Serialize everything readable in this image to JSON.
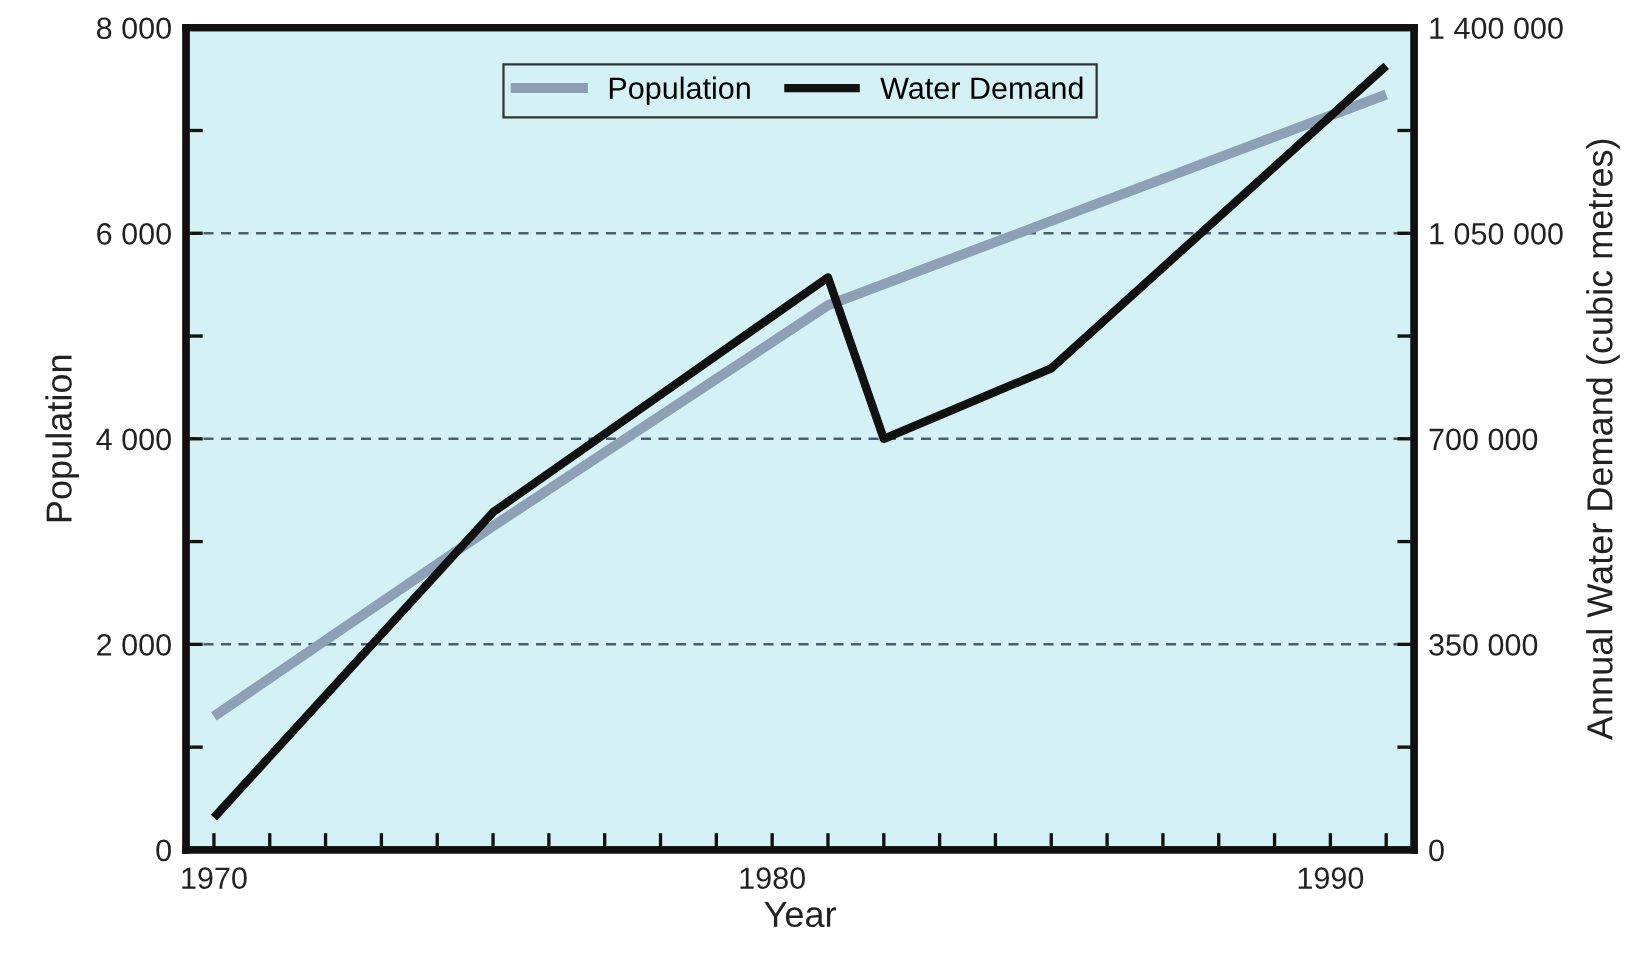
{
  "chart_data": {
    "type": "line",
    "xlabel": "Year",
    "ylabel": "Population",
    "y2label": "Annual Water Demand (cubic metres)",
    "xlim": [
      1969.5,
      1991.5
    ],
    "xticks": [
      1970,
      {
        "value": 1971,
        "label": null
      },
      {
        "value": 1972,
        "label": null
      },
      {
        "value": 1973,
        "label": null
      },
      {
        "value": 1974,
        "label": null
      },
      {
        "value": 1975,
        "label": null
      },
      {
        "value": 1976,
        "label": null
      },
      {
        "value": 1977,
        "label": null
      },
      {
        "value": 1978,
        "label": null
      },
      {
        "value": 1979,
        "label": null
      },
      1980,
      {
        "value": 1981,
        "label": null
      },
      {
        "value": 1982,
        "label": null
      },
      {
        "value": 1983,
        "label": null
      },
      {
        "value": 1984,
        "label": null
      },
      {
        "value": 1985,
        "label": null
      },
      {
        "value": 1986,
        "label": null
      },
      {
        "value": 1987,
        "label": null
      },
      {
        "value": 1988,
        "label": null
      },
      {
        "value": 1989,
        "label": null
      },
      1990,
      {
        "value": 1991,
        "label": null
      }
    ],
    "ylim": [
      0,
      8000
    ],
    "yticks": [
      0,
      {
        "value": 1000,
        "label": null
      },
      {
        "value": 2000,
        "label": "2 000"
      },
      {
        "value": 3000,
        "label": null
      },
      {
        "value": 4000,
        "label": "4 000"
      },
      {
        "value": 5000,
        "label": null
      },
      {
        "value": 6000,
        "label": "6 000"
      },
      {
        "value": 7000,
        "label": null
      },
      {
        "value": 8000,
        "label": "8 000"
      }
    ],
    "y2lim": [
      0,
      1400000
    ],
    "y2ticks": [
      0,
      {
        "value": 175000,
        "label": null
      },
      {
        "value": 350000,
        "label": "350 000"
      },
      {
        "value": 525000,
        "label": null
      },
      {
        "value": 700000,
        "label": "700 000"
      },
      {
        "value": 875000,
        "label": null
      },
      {
        "value": 1050000,
        "label": "1 050 000"
      },
      {
        "value": 1225000,
        "label": null
      },
      {
        "value": 1400000,
        "label": "1 400 000"
      }
    ],
    "grid": "y",
    "legend": "top",
    "series": [
      {
        "name": "Population",
        "color": "#8da0b6",
        "x": [
          1970,
          1975,
          1981,
          1991
        ],
        "values": [
          1300,
          3150,
          5300,
          7350
        ]
      },
      {
        "name": "Water Demand",
        "color": "#111111",
        "axis": "y2",
        "x": [
          1970,
          1975,
          1981,
          1982,
          1985,
          1991
        ],
        "values": [
          55000,
          575000,
          975000,
          700000,
          820000,
          1335000
        ]
      }
    ]
  }
}
